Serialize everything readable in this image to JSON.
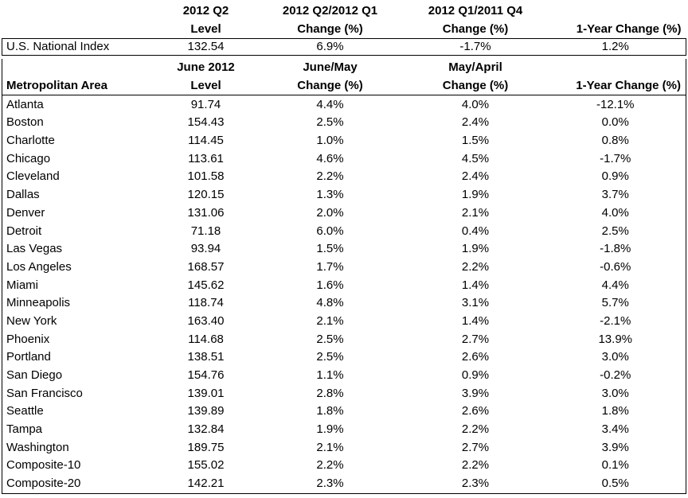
{
  "national": {
    "headers": [
      [
        "",
        "2012 Q2",
        "2012 Q2/2012 Q1",
        "2012 Q1/2011 Q4",
        ""
      ],
      [
        "",
        "Level",
        "Change (%)",
        "Change (%)",
        "1-Year Change (%)"
      ]
    ],
    "row": [
      "U.S. National Index",
      "132.54",
      "6.9%",
      "-1.7%",
      "1.2%"
    ]
  },
  "metro": {
    "headers": [
      [
        "",
        "June 2012",
        "June/May",
        "May/April",
        ""
      ],
      [
        "Metropolitan Area",
        "Level",
        "Change (%)",
        "Change (%)",
        "1-Year Change (%)"
      ]
    ],
    "rows": [
      [
        "Atlanta",
        "91.74",
        "4.4%",
        "4.0%",
        "-12.1%"
      ],
      [
        "Boston",
        "154.43",
        "2.5%",
        "2.4%",
        "0.0%"
      ],
      [
        "Charlotte",
        "114.45",
        "1.0%",
        "1.5%",
        "0.8%"
      ],
      [
        "Chicago",
        "113.61",
        "4.6%",
        "4.5%",
        "-1.7%"
      ],
      [
        "Cleveland",
        "101.58",
        "2.2%",
        "2.4%",
        "0.9%"
      ],
      [
        "Dallas",
        "120.15",
        "1.3%",
        "1.9%",
        "3.7%"
      ],
      [
        "Denver",
        "131.06",
        "2.0%",
        "2.1%",
        "4.0%"
      ],
      [
        "Detroit",
        "71.18",
        "6.0%",
        "0.4%",
        "2.5%"
      ],
      [
        "Las Vegas",
        "93.94",
        "1.5%",
        "1.9%",
        "-1.8%"
      ],
      [
        "Los Angeles",
        "168.57",
        "1.7%",
        "2.2%",
        "-0.6%"
      ],
      [
        "Miami",
        "145.62",
        "1.6%",
        "1.4%",
        "4.4%"
      ],
      [
        "Minneapolis",
        "118.74",
        "4.8%",
        "3.1%",
        "5.7%"
      ],
      [
        "New York",
        "163.40",
        "2.1%",
        "1.4%",
        "-2.1%"
      ],
      [
        "Phoenix",
        "114.68",
        "2.5%",
        "2.7%",
        "13.9%"
      ],
      [
        "Portland",
        "138.51",
        "2.5%",
        "2.6%",
        "3.0%"
      ],
      [
        "San Diego",
        "154.76",
        "1.1%",
        "0.9%",
        "-0.2%"
      ],
      [
        "San Francisco",
        "139.01",
        "2.8%",
        "3.9%",
        "3.0%"
      ],
      [
        "Seattle",
        "139.89",
        "1.8%",
        "2.6%",
        "1.8%"
      ],
      [
        "Tampa",
        "132.84",
        "1.9%",
        "2.2%",
        "3.4%"
      ],
      [
        "Washington",
        "189.75",
        "2.1%",
        "2.7%",
        "3.9%"
      ],
      [
        "Composite-10",
        "155.02",
        "2.2%",
        "2.2%",
        "0.1%"
      ],
      [
        "Composite-20",
        "142.21",
        "2.3%",
        "2.3%",
        "0.5%"
      ]
    ]
  }
}
